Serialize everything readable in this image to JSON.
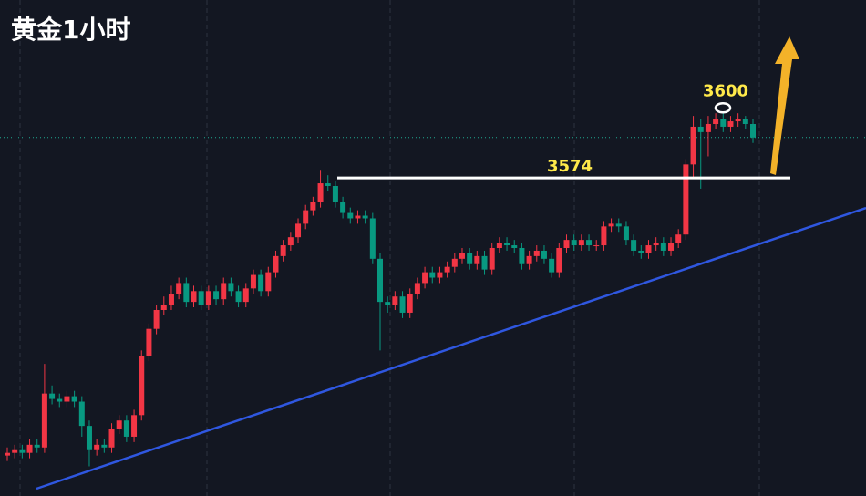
{
  "chart_data": {
    "type": "candlestick",
    "title": "黄金1小时",
    "open": [
      3471,
      3472,
      3473,
      3472,
      3475,
      3474,
      3494,
      3492,
      3491,
      3493,
      3491,
      3482,
      3473,
      3475,
      3474,
      3481,
      3484,
      3478,
      3486,
      3508,
      3518,
      3525,
      3527,
      3531,
      3535,
      3528,
      3532,
      3527,
      3532,
      3529,
      3535,
      3532,
      3528,
      3533,
      3538,
      3532,
      3539,
      3545,
      3549,
      3552,
      3557,
      3562,
      3565,
      3572,
      3571,
      3565,
      3561,
      3559,
      3560,
      3559,
      3544,
      3528,
      3527,
      3530,
      3524,
      3531,
      3535,
      3539,
      3537,
      3539,
      3541,
      3544,
      3546,
      3542,
      3545,
      3540,
      3548,
      3550,
      3549,
      3548,
      3542,
      3545,
      3547,
      3544,
      3539,
      3548,
      3551,
      3549,
      3551,
      3549,
      3549,
      3556,
      3557,
      3556,
      3551,
      3547,
      3546,
      3549,
      3550,
      3547,
      3550,
      3553,
      3579,
      3593,
      3591,
      3594,
      3596,
      3593,
      3595,
      3596,
      3594
    ],
    "high": [
      3474,
      3475,
      3475,
      3477,
      3477,
      3505,
      3497,
      3494,
      3495,
      3495,
      3493,
      3484,
      3477,
      3477,
      3483,
      3486,
      3486,
      3488,
      3510,
      3520,
      3527,
      3530,
      3534,
      3537,
      3537,
      3534,
      3534,
      3534,
      3534,
      3537,
      3537,
      3534,
      3535,
      3540,
      3540,
      3541,
      3547,
      3551,
      3554,
      3559,
      3564,
      3567,
      3577,
      3575,
      3573,
      3567,
      3563,
      3562,
      3562,
      3561,
      3546,
      3530,
      3532,
      3532,
      3533,
      3537,
      3541,
      3541,
      3541,
      3543,
      3546,
      3548,
      3548,
      3547,
      3547,
      3550,
      3552,
      3552,
      3551,
      3550,
      3547,
      3549,
      3549,
      3546,
      3550,
      3553,
      3553,
      3553,
      3553,
      3551,
      3558,
      3559,
      3559,
      3558,
      3553,
      3549,
      3551,
      3552,
      3552,
      3552,
      3555,
      3581,
      3597,
      3596,
      3597,
      3598,
      3598,
      3597,
      3598,
      3597,
      3596
    ],
    "low": [
      3469,
      3470,
      3470,
      3470,
      3472,
      3472,
      3490,
      3489,
      3489,
      3489,
      3478,
      3467,
      3471,
      3472,
      3472,
      3479,
      3476,
      3476,
      3484,
      3506,
      3516,
      3523,
      3525,
      3529,
      3526,
      3526,
      3525,
      3525,
      3527,
      3527,
      3530,
      3526,
      3526,
      3531,
      3530,
      3530,
      3537,
      3543,
      3547,
      3550,
      3555,
      3560,
      3563,
      3569,
      3563,
      3559,
      3557,
      3557,
      3557,
      3542,
      3510,
      3524,
      3525,
      3522,
      3522,
      3529,
      3533,
      3535,
      3535,
      3537,
      3539,
      3542,
      3540,
      3540,
      3538,
      3538,
      3546,
      3547,
      3546,
      3540,
      3540,
      3543,
      3542,
      3537,
      3537,
      3546,
      3547,
      3547,
      3547,
      3547,
      3547,
      3554,
      3554,
      3549,
      3545,
      3544,
      3544,
      3547,
      3545,
      3545,
      3548,
      3551,
      3574,
      3570,
      3582,
      3592,
      3591,
      3591,
      3593,
      3592,
      3587
    ],
    "close": [
      3472,
      3473,
      3472,
      3475,
      3474,
      3494,
      3492,
      3491,
      3493,
      3491,
      3482,
      3473,
      3475,
      3474,
      3481,
      3484,
      3478,
      3486,
      3508,
      3518,
      3525,
      3527,
      3531,
      3535,
      3528,
      3532,
      3527,
      3532,
      3529,
      3535,
      3532,
      3528,
      3533,
      3538,
      3532,
      3539,
      3545,
      3549,
      3552,
      3557,
      3562,
      3565,
      3572,
      3571,
      3565,
      3561,
      3559,
      3560,
      3559,
      3544,
      3528,
      3527,
      3530,
      3524,
      3531,
      3535,
      3539,
      3537,
      3539,
      3541,
      3544,
      3546,
      3542,
      3545,
      3540,
      3548,
      3550,
      3549,
      3548,
      3542,
      3545,
      3547,
      3544,
      3539,
      3548,
      3551,
      3549,
      3551,
      3549,
      3549,
      3556,
      3557,
      3556,
      3551,
      3547,
      3546,
      3549,
      3550,
      3547,
      3550,
      3553,
      3579,
      3593,
      3591,
      3594,
      3596,
      3593,
      3595,
      3596,
      3594,
      3589
    ],
    "ylim": [
      3456,
      3640
    ],
    "up_color": "#f23645",
    "down_color": "#089981",
    "resistance": 3574,
    "peak": 3600,
    "last_price": 3589
  }
}
